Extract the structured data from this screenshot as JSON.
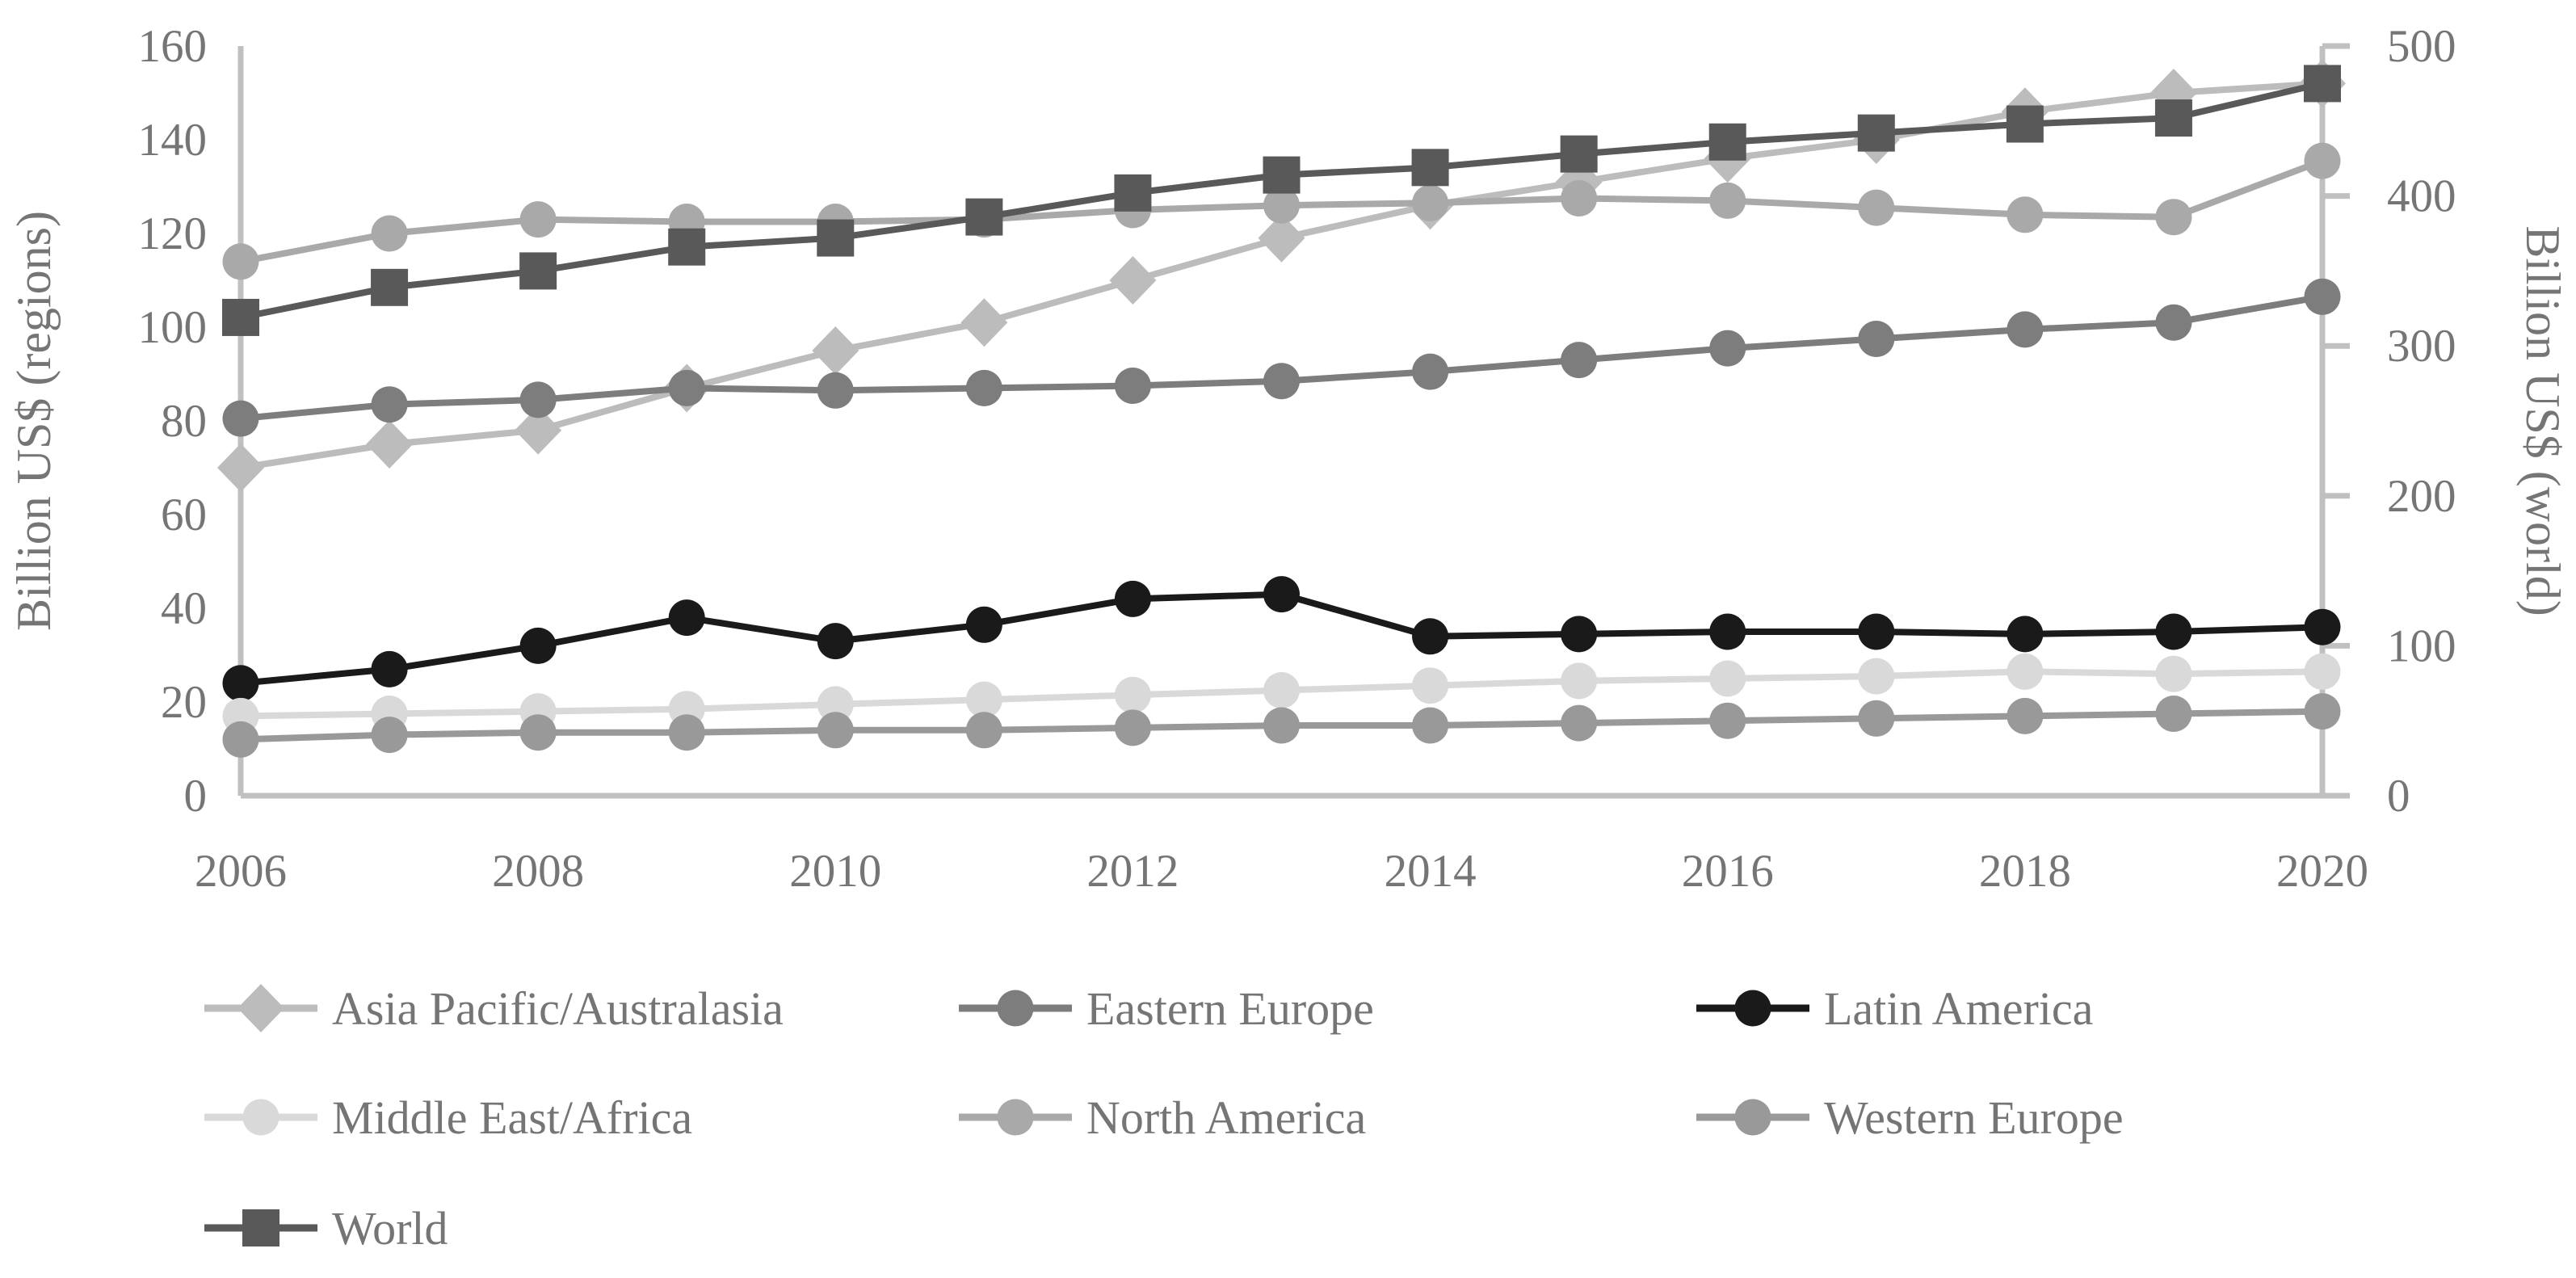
{
  "chart_data": {
    "type": "line",
    "title": "",
    "x": [
      2006,
      2007,
      2008,
      2009,
      2010,
      2011,
      2012,
      2013,
      2014,
      2015,
      2016,
      2017,
      2018,
      2019,
      2020
    ],
    "x_tick_labels": [
      "2006",
      "2008",
      "2010",
      "2012",
      "2014",
      "2016",
      "2018",
      "2020"
    ],
    "left_axis": {
      "label": "Billion US$ (regions)",
      "min": 0,
      "max": 160,
      "step": 20,
      "ticks": [
        "0",
        "20",
        "40",
        "60",
        "80",
        "100",
        "120",
        "140",
        "160"
      ]
    },
    "right_axis": {
      "label": "Billion US$ (world)",
      "min": 0,
      "max": 500,
      "step": 100,
      "ticks": [
        "0",
        "100",
        "200",
        "300",
        "400",
        "500"
      ]
    },
    "grid": false,
    "legend_position": "bottom-left",
    "series": [
      {
        "name": "Asia Pacific/Australasia",
        "axis": "left",
        "marker": "diamond",
        "color": "#bcbcbc",
        "values": [
          70,
          75,
          78,
          87,
          95,
          101,
          110,
          119,
          126,
          131,
          136,
          140,
          146,
          150,
          152
        ]
      },
      {
        "name": "Eastern Europe",
        "axis": "left",
        "marker": "circle",
        "color": "#7d7d7d",
        "values": [
          80.5,
          83.5,
          84.5,
          87,
          86.5,
          87,
          87.5,
          88.5,
          90.5,
          93,
          95.5,
          97.5,
          99.5,
          101,
          106.5
        ]
      },
      {
        "name": "Latin America",
        "axis": "left",
        "marker": "circle",
        "color": "#1a1a1a",
        "values": [
          24,
          27,
          32,
          38,
          33,
          36.5,
          42,
          43,
          34,
          34.5,
          35,
          35,
          34.5,
          35,
          36
        ]
      },
      {
        "name": "Middle East/Africa",
        "axis": "left",
        "marker": "circle",
        "color": "#d9d9d9",
        "values": [
          17,
          17.5,
          18,
          18.5,
          19.5,
          20.5,
          21.5,
          22.5,
          23.5,
          24.5,
          25,
          25.5,
          26.5,
          26,
          26.5
        ]
      },
      {
        "name": "North America",
        "axis": "left",
        "marker": "circle",
        "color": "#a9a9a9",
        "values": [
          114,
          120,
          123,
          122.5,
          122.5,
          123,
          125,
          126,
          126.5,
          127.5,
          127,
          125.5,
          124,
          123.5,
          135.5
        ]
      },
      {
        "name": "Western Europe",
        "axis": "left",
        "marker": "circle",
        "color": "#999999",
        "values": [
          12,
          13,
          13.5,
          13.5,
          14,
          14,
          14.5,
          15,
          15,
          15.5,
          16,
          16.5,
          17,
          17.5,
          18
        ]
      },
      {
        "name": "World",
        "axis": "right",
        "marker": "square",
        "color": "#595959",
        "values": [
          319,
          339,
          350,
          366,
          372,
          386,
          402,
          414,
          419,
          428,
          436,
          442,
          448,
          452,
          475
        ]
      }
    ]
  },
  "styles": {
    "background": "#ffffff",
    "axis_line_color": "#c0c0c0",
    "text_color": "#757575"
  }
}
